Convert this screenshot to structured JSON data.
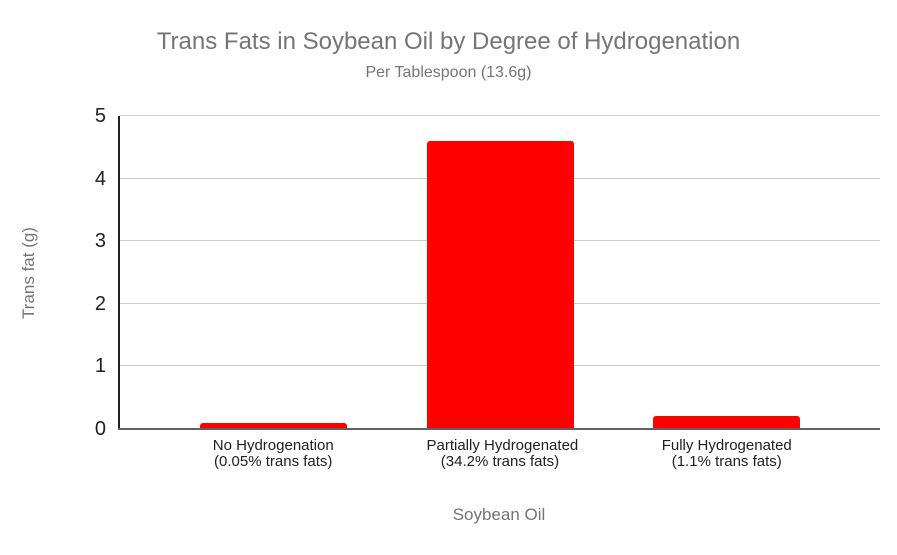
{
  "chart": {
    "title": "Trans Fats in Soybean Oil by Degree of Hydrogenation",
    "subtitle": "Per Tablespoon (13.6g)",
    "y_axis_title": "Trans fat (g)",
    "x_axis_title": "Soybean Oil"
  },
  "chart_data": {
    "type": "bar",
    "title": "Trans Fats in Soybean Oil by Degree of Hydrogenation",
    "subtitle": "Per Tablespoon (13.6g)",
    "xlabel": "Soybean Oil",
    "ylabel": "Trans fat (g)",
    "categories": [
      {
        "line1": "No Hydrogenation",
        "line2": "(0.05% trans fats)"
      },
      {
        "line1": "Partially Hydrogenated",
        "line2": "(34.2% trans fats)"
      },
      {
        "line1": "Fully Hydrogenated",
        "line2": "(1.1% trans fats)"
      }
    ],
    "values": [
      0.1,
      4.6,
      0.2
    ],
    "ylim": [
      0,
      5
    ],
    "yticks": [
      0,
      1,
      2,
      3,
      4,
      5
    ],
    "grid": true,
    "legend": "none",
    "bar_color": "#ff0000"
  },
  "colors": {
    "bar": "#ff0000",
    "title_text": "#757575",
    "axis_title_text": "#757575",
    "tick_text": "#212121",
    "gridline": "#cccccc",
    "y_axis_line": "#212121",
    "baseline": "#616161",
    "background": "#ffffff"
  }
}
